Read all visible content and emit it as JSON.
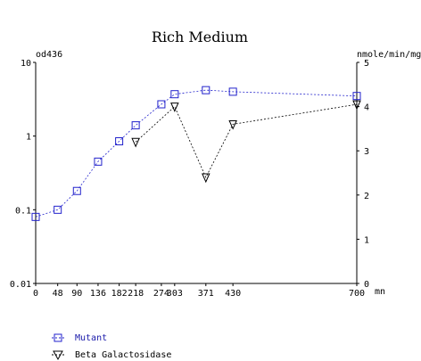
{
  "chart_data": {
    "type": "line",
    "title": "Rich Medium",
    "left_axis": {
      "unit": "od436",
      "scale": "log",
      "range": [
        0.01,
        10
      ],
      "ticks": [
        0.01,
        0.1,
        1,
        10
      ],
      "tick_labels": [
        "0.01",
        "0.1",
        "1",
        "10"
      ]
    },
    "right_axis": {
      "unit": "nmole/min/mg",
      "scale": "linear",
      "range": [
        0,
        5
      ],
      "ticks": [
        0,
        1,
        2,
        3,
        4,
        5
      ],
      "tick_labels": [
        "0",
        "1",
        "2",
        "3",
        "4",
        "5"
      ]
    },
    "x_axis": {
      "unit": "mn",
      "range": [
        0,
        700
      ],
      "ticks": [
        0,
        48,
        90,
        136,
        182,
        218,
        274,
        303,
        371,
        430,
        700
      ],
      "tick_labels": [
        "0",
        "48",
        "90",
        "136",
        "182",
        "218",
        "274",
        "303",
        "371",
        "430",
        "700"
      ]
    },
    "series": [
      {
        "name": "Mutant",
        "axis": "left",
        "marker": "square",
        "color": "#2222cc",
        "x": [
          0,
          48,
          90,
          136,
          182,
          218,
          274,
          303,
          371,
          430,
          700
        ],
        "y": [
          0.08,
          0.1,
          0.18,
          0.45,
          0.85,
          1.4,
          2.7,
          3.7,
          4.2,
          4.0,
          3.5
        ]
      },
      {
        "name": "Beta Galactosidase",
        "axis": "right",
        "marker": "triangle-down",
        "color": "#000000",
        "x": [
          218,
          303,
          371,
          430,
          700
        ],
        "y": [
          3.2,
          4.0,
          2.4,
          3.6,
          4.05
        ]
      }
    ],
    "legend": {
      "placement": "bottom-left"
    },
    "grid": false
  }
}
